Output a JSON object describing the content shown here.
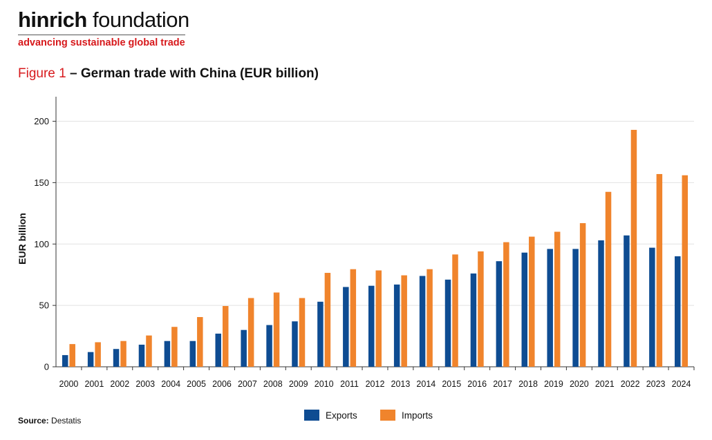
{
  "logo": {
    "brand": "hinrich",
    "name_rest": "foundation",
    "tagline": "advancing sustainable global trade"
  },
  "figure": {
    "number": "Figure 1",
    "separator": "–",
    "title": "German trade with China (EUR billion)"
  },
  "source": {
    "label": "Source:",
    "value": "Destatis"
  },
  "colors": {
    "exports": "#0e4c92",
    "imports": "#f0842c",
    "accent_red": "#d7191c",
    "grid": "#e2e2e2"
  },
  "chart_data": {
    "type": "bar",
    "title": "German trade with China (EUR billion)",
    "xlabel": "",
    "ylabel": "EUR billion",
    "ylim": [
      0,
      220
    ],
    "yticks": [
      0,
      50,
      100,
      150,
      200
    ],
    "grid": true,
    "legend_position": "bottom-center",
    "categories": [
      "2000",
      "2001",
      "2002",
      "2003",
      "2004",
      "2005",
      "2006",
      "2007",
      "2008",
      "2009",
      "2010",
      "2011",
      "2012",
      "2013",
      "2014",
      "2015",
      "2016",
      "2017",
      "2018",
      "2019",
      "2020",
      "2021",
      "2022",
      "2023",
      "2024"
    ],
    "series": [
      {
        "name": "Exports",
        "color": "#0e4c92",
        "values": [
          9.5,
          12,
          14.5,
          18,
          21,
          21,
          27,
          30,
          34,
          37,
          53,
          65,
          66,
          67,
          74,
          71,
          76,
          86,
          93,
          96,
          96,
          103,
          107,
          97,
          90
        ]
      },
      {
        "name": "Imports",
        "color": "#f0842c",
        "values": [
          18.5,
          20,
          21,
          25.5,
          32.5,
          40.5,
          49.5,
          56,
          60.5,
          56,
          76.5,
          79.5,
          78.5,
          74.5,
          79.5,
          91.5,
          94,
          101.5,
          106,
          110,
          117,
          142.5,
          193,
          157,
          156
        ]
      }
    ]
  }
}
